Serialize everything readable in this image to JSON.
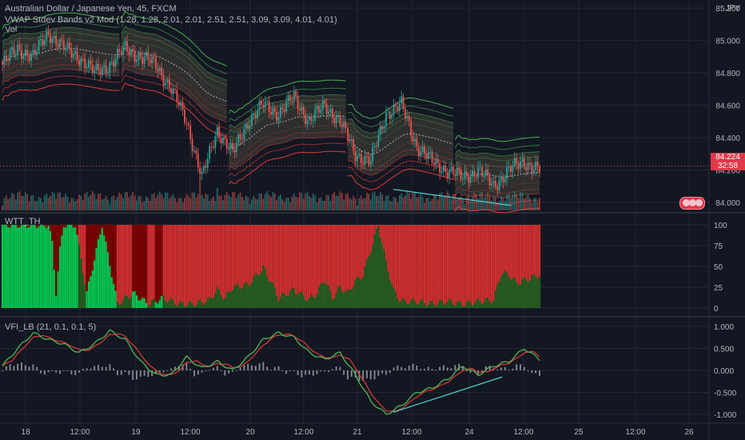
{
  "main": {
    "title": "Australian Dollar / Japanese Yen, 45, FXCM",
    "indicator": "VWAP Stdev Bands v2 Mod (1.28, 1.28, 2.01, 2.01, 2.51, 2.51, 3.09, 3.09, 4.01, 4.01)",
    "volume_label": "Vol",
    "currency": "JPY",
    "last_price": "84.224",
    "countdown": "32:58"
  },
  "wtt": {
    "label": "WTT_TH"
  },
  "vfi": {
    "label": "VFI_LB (21, 0.1, 0.1, 5)"
  },
  "colors": {
    "background": "#131722",
    "grid": "#232733",
    "up": "#26a69a",
    "down": "#ef5350",
    "band_outer_green": "#4caf50",
    "band_outer_red": "#e53935",
    "wtt_green": "#00c853",
    "wtt_dark_green": "#1b5e20",
    "wtt_red": "#d32f2f",
    "wtt_dark_red": "#7f0000",
    "vfi_green": "#4caf50",
    "vfi_red": "#e53935",
    "trendline": "#4dd0c8"
  },
  "chart_data": [
    {
      "type": "candlestick",
      "pane": "price",
      "title": "Australian Dollar / Japanese Yen, 45, FXCM",
      "x_ticks": [
        "18",
        "12:00",
        "19",
        "12:00",
        "20",
        "12:00",
        "21",
        "12:00",
        "24",
        "12:00",
        "25",
        "12:00",
        "26"
      ],
      "y_ticks": [
        "85.200",
        "85.000",
        "84.800",
        "84.600",
        "84.400",
        "84.200",
        "84.000"
      ],
      "ylim": [
        83.95,
        85.25
      ],
      "last": 84.224,
      "close_path": [
        [
          0,
          84.85
        ],
        [
          8,
          84.95
        ],
        [
          16,
          84.9
        ],
        [
          24,
          85.05
        ],
        [
          32,
          84.95
        ],
        [
          40,
          84.9
        ],
        [
          48,
          84.8
        ],
        [
          56,
          84.85
        ],
        [
          64,
          84.95
        ],
        [
          72,
          84.9
        ],
        [
          80,
          84.85
        ],
        [
          88,
          84.7
        ],
        [
          96,
          84.5
        ],
        [
          104,
          84.15
        ],
        [
          112,
          84.45
        ],
        [
          120,
          84.3
        ],
        [
          128,
          84.5
        ],
        [
          136,
          84.6
        ],
        [
          144,
          84.55
        ],
        [
          152,
          84.65
        ],
        [
          160,
          84.5
        ],
        [
          168,
          84.6
        ],
        [
          176,
          84.5
        ],
        [
          184,
          84.3
        ],
        [
          192,
          84.25
        ],
        [
          200,
          84.55
        ],
        [
          208,
          84.6
        ],
        [
          216,
          84.35
        ],
        [
          224,
          84.25
        ],
        [
          232,
          84.2
        ],
        [
          240,
          84.15
        ],
        [
          248,
          84.2
        ],
        [
          256,
          84.1
        ],
        [
          264,
          84.2
        ],
        [
          272,
          84.25
        ],
        [
          280,
          84.2
        ]
      ]
    },
    {
      "type": "bar",
      "pane": "wtt",
      "title": "WTT_TH",
      "y_ticks": [
        "100",
        "75",
        "50",
        "25",
        "0"
      ],
      "ylim": [
        0,
        100
      ],
      "bright_levels": [
        [
          0,
          100
        ],
        [
          16,
          100
        ],
        [
          24,
          100
        ],
        [
          26,
          78
        ],
        [
          28,
          18
        ],
        [
          30,
          70
        ],
        [
          32,
          100
        ],
        [
          38,
          100
        ],
        [
          44,
          18
        ],
        [
          52,
          100
        ],
        [
          60,
          5
        ],
        [
          68,
          18
        ],
        [
          76,
          5
        ],
        [
          84,
          12
        ],
        [
          92,
          5
        ],
        [
          100,
          5
        ],
        [
          108,
          10
        ],
        [
          112,
          22
        ],
        [
          116,
          12
        ],
        [
          120,
          25
        ],
        [
          128,
          28
        ],
        [
          136,
          48
        ],
        [
          140,
          32
        ],
        [
          144,
          12
        ],
        [
          152,
          22
        ],
        [
          160,
          10
        ],
        [
          164,
          18
        ],
        [
          168,
          35
        ],
        [
          172,
          12
        ],
        [
          176,
          25
        ],
        [
          180,
          18
        ],
        [
          184,
          32
        ],
        [
          188,
          40
        ],
        [
          196,
          100
        ],
        [
          200,
          55
        ],
        [
          204,
          20
        ],
        [
          208,
          8
        ],
        [
          216,
          8
        ],
        [
          224,
          5
        ],
        [
          232,
          8
        ],
        [
          240,
          5
        ],
        [
          248,
          8
        ],
        [
          256,
          10
        ],
        [
          260,
          42
        ],
        [
          264,
          40
        ],
        [
          268,
          30
        ],
        [
          280,
          40
        ]
      ]
    },
    {
      "type": "line",
      "pane": "vfi",
      "title": "VFI_LB (21, 0.1, 0.1, 5)",
      "y_ticks": [
        "1.000",
        "0.500",
        "0.000",
        "-0.500",
        "-1.000"
      ],
      "ylim": [
        -1.1,
        1.1
      ],
      "series_path": [
        [
          0,
          0.1
        ],
        [
          8,
          0.5
        ],
        [
          16,
          0.85
        ],
        [
          24,
          0.7
        ],
        [
          32,
          0.6
        ],
        [
          40,
          0.4
        ],
        [
          48,
          0.6
        ],
        [
          56,
          0.9
        ],
        [
          64,
          0.7
        ],
        [
          72,
          0.2
        ],
        [
          80,
          -0.1
        ],
        [
          88,
          -0.1
        ],
        [
          96,
          0.3
        ],
        [
          104,
          0.05
        ],
        [
          112,
          0.2
        ],
        [
          120,
          0.0
        ],
        [
          128,
          0.3
        ],
        [
          136,
          0.7
        ],
        [
          144,
          0.85
        ],
        [
          152,
          0.75
        ],
        [
          160,
          0.4
        ],
        [
          168,
          0.25
        ],
        [
          176,
          0.4
        ],
        [
          184,
          -0.1
        ],
        [
          192,
          -0.7
        ],
        [
          200,
          -1.0
        ],
        [
          208,
          -0.8
        ],
        [
          216,
          -0.5
        ],
        [
          224,
          -0.4
        ],
        [
          232,
          -0.2
        ],
        [
          240,
          0.1
        ],
        [
          248,
          -0.1
        ],
        [
          256,
          0.1
        ],
        [
          264,
          0.2
        ],
        [
          272,
          0.5
        ],
        [
          280,
          0.25
        ]
      ]
    }
  ]
}
